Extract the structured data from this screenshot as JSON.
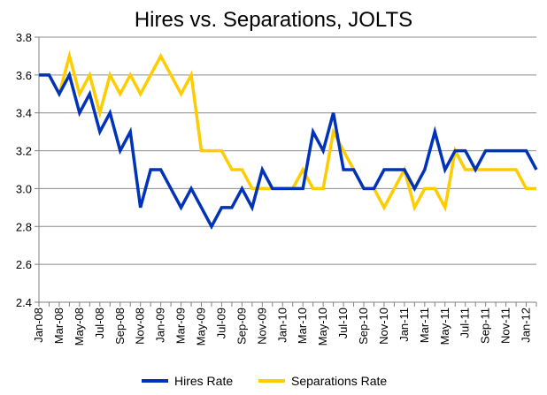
{
  "chart_data": {
    "type": "line",
    "title": "Hires vs. Separations, JOLTS",
    "xlabel": "",
    "ylabel": "",
    "ylim": [
      2.4,
      3.8
    ],
    "yticks": [
      "2.4",
      "2.6",
      "2.8",
      "3.0",
      "3.2",
      "3.4",
      "3.6",
      "3.8"
    ],
    "grid": true,
    "legend_position": "bottom",
    "x_tick_labels": [
      "Jan-08",
      "Mar-08",
      "May-08",
      "Jul-08",
      "Sep-08",
      "Nov-08",
      "Jan-09",
      "Mar-09",
      "May-09",
      "Jul-09",
      "Sep-09",
      "Nov-09",
      "Jan-10",
      "Mar-10",
      "May-10",
      "Jul-10",
      "Sep-10",
      "Nov-10",
      "Jan-11",
      "Mar-11",
      "May-11",
      "Jul-11",
      "Sep-11",
      "Nov-11",
      "Jan-12"
    ],
    "x_tick_every": 2,
    "series": [
      {
        "name": "Hires Rate",
        "color": "#0033B8",
        "values": [
          3.6,
          3.6,
          3.5,
          3.6,
          3.4,
          3.5,
          3.3,
          3.4,
          3.2,
          3.3,
          2.9,
          3.1,
          3.1,
          3.0,
          2.9,
          3.0,
          2.9,
          2.8,
          2.9,
          2.9,
          3.0,
          2.9,
          3.1,
          3.0,
          3.0,
          3.0,
          3.0,
          3.3,
          3.2,
          3.4,
          3.1,
          3.1,
          3.0,
          3.0,
          3.1,
          3.1,
          3.1,
          3.0,
          3.1,
          3.3,
          3.1,
          3.2,
          3.2,
          3.1,
          3.2,
          3.2,
          3.2,
          3.2,
          3.2,
          3.1
        ]
      },
      {
        "name": "Separations Rate",
        "color": "#FFCC00",
        "values": [
          3.6,
          3.6,
          3.5,
          3.7,
          3.5,
          3.6,
          3.4,
          3.6,
          3.5,
          3.6,
          3.5,
          3.6,
          3.7,
          3.6,
          3.5,
          3.6,
          3.2,
          3.2,
          3.2,
          3.1,
          3.1,
          3.0,
          3.0,
          3.0,
          3.0,
          3.0,
          3.1,
          3.0,
          3.0,
          3.3,
          3.2,
          3.1,
          3.0,
          3.0,
          2.9,
          3.0,
          3.1,
          2.9,
          3.0,
          3.0,
          2.9,
          3.2,
          3.1,
          3.1,
          3.1,
          3.1,
          3.1,
          3.1,
          3.0,
          3.0
        ]
      }
    ]
  }
}
